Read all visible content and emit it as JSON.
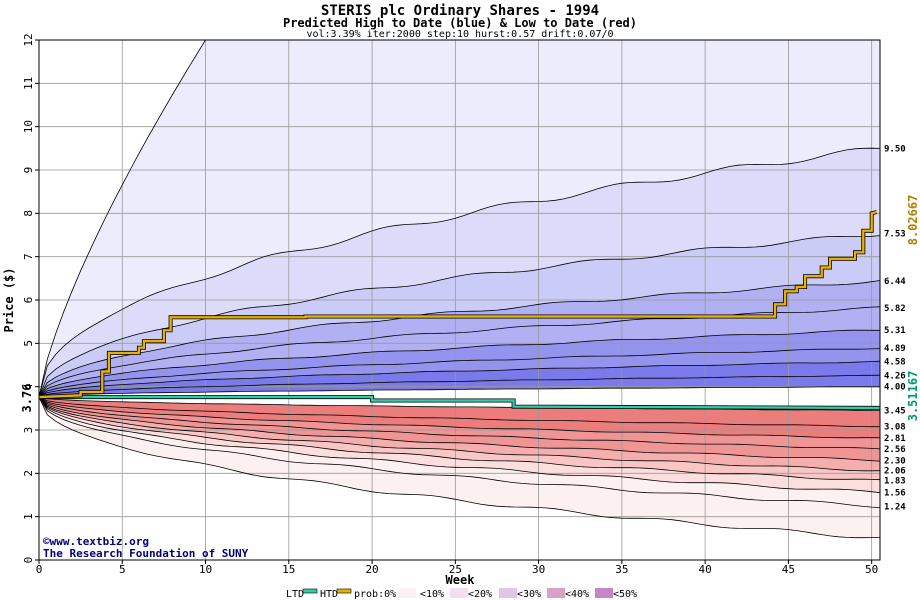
{
  "chart_data": {
    "type": "area",
    "title": "STERIS plc Ordinary Shares - 1994",
    "subtitle": "Predicted High to Date (blue) &  Low to Date (red)",
    "params": "vol:3.39% iter:2000 step:10 hurst:0.57 drift:0.07/0",
    "xlabel": "Week",
    "ylabel": "Price ($)",
    "xlim": [
      0,
      50.5
    ],
    "ylim": [
      0,
      12
    ],
    "xticks": [
      0,
      5,
      10,
      15,
      20,
      25,
      30,
      35,
      40,
      45,
      50
    ],
    "yticks": [
      0,
      1,
      2,
      3,
      4,
      5,
      6,
      7,
      8,
      9,
      10,
      11,
      12
    ],
    "grid": true,
    "start_price": 3.76,
    "start_label": "3.76",
    "high_final_label": "8.02667",
    "low_final_label": "3.51167",
    "colors": {
      "high_band_outer": "#ececfc",
      "high_band_10": "#dcdcfa",
      "high_band_20": "#cbcbf7",
      "high_band_30": "#b0b0f2",
      "high_band_40": "#9494ee",
      "high_band_50": "#7a7aea",
      "low_band_outer": "#fdf0f0",
      "low_band_10": "#fcdede",
      "low_band_20": "#f9c6c6",
      "low_band_30": "#f5aeae",
      "low_band_40": "#f09595",
      "low_band_50": "#ec7d7d",
      "ltd_line": "#33ccaa",
      "htd_line": "#e8b000",
      "curve": "#000000",
      "grid": "#999999",
      "credit": "#00007a"
    },
    "upper_curves": [
      {
        "label": "",
        "final": 12.0
      },
      {
        "label": "9.50",
        "final": 9.5
      },
      {
        "label": "7.53",
        "final": 7.53
      },
      {
        "label": "6.44",
        "final": 6.44
      },
      {
        "label": "5.82",
        "final": 5.82
      },
      {
        "label": "5.31",
        "final": 5.31
      },
      {
        "label": "4.89",
        "final": 4.89
      },
      {
        "label": "4.58",
        "final": 4.58
      },
      {
        "label": "4.26",
        "final": 4.26
      },
      {
        "label": "4.00",
        "final": 4.0
      }
    ],
    "lower_curves": [
      {
        "label": "3.45",
        "final": 3.45
      },
      {
        "label": "3.08",
        "final": 3.08
      },
      {
        "label": "2.81",
        "final": 2.81
      },
      {
        "label": "2.56",
        "final": 2.56
      },
      {
        "label": "2.30",
        "final": 2.3
      },
      {
        "label": "2.06",
        "final": 2.06
      },
      {
        "label": "1.83",
        "final": 1.83
      },
      {
        "label": "1.56",
        "final": 1.56
      },
      {
        "label": "1.24",
        "final": 1.24
      },
      {
        "label": "",
        "final": 0.5
      }
    ],
    "htd_series": {
      "name": "HTD",
      "points": [
        [
          0,
          3.76
        ],
        [
          2.5,
          3.8
        ],
        [
          2.5,
          3.88
        ],
        [
          3.8,
          3.88
        ],
        [
          3.8,
          4.35
        ],
        [
          4.2,
          4.35
        ],
        [
          4.2,
          4.78
        ],
        [
          6,
          4.78
        ],
        [
          6,
          4.9
        ],
        [
          6.3,
          4.9
        ],
        [
          6.3,
          5.05
        ],
        [
          7.5,
          5.05
        ],
        [
          7.5,
          5.3
        ],
        [
          7.9,
          5.3
        ],
        [
          7.9,
          5.6
        ],
        [
          16,
          5.6
        ],
        [
          16,
          5.62
        ],
        [
          44.2,
          5.62
        ],
        [
          44.2,
          5.9
        ],
        [
          44.8,
          5.9
        ],
        [
          44.8,
          6.2
        ],
        [
          45.5,
          6.2
        ],
        [
          45.5,
          6.3
        ],
        [
          46,
          6.3
        ],
        [
          46,
          6.55
        ],
        [
          47,
          6.55
        ],
        [
          47,
          6.75
        ],
        [
          47.5,
          6.75
        ],
        [
          47.5,
          6.95
        ],
        [
          49,
          6.95
        ],
        [
          49,
          7.1
        ],
        [
          49.5,
          7.1
        ],
        [
          49.5,
          7.6
        ],
        [
          50,
          7.6
        ],
        [
          50,
          8.0
        ],
        [
          50.3,
          8.03
        ]
      ]
    },
    "ltd_series": {
      "name": "LTD",
      "points": [
        [
          0,
          3.76
        ],
        [
          20,
          3.76
        ],
        [
          20,
          3.68
        ],
        [
          28.5,
          3.68
        ],
        [
          28.5,
          3.54
        ],
        [
          50.5,
          3.51
        ]
      ]
    },
    "legend": {
      "ltd": "LTD",
      "htd": "HTD",
      "prob": "prob:0%",
      "b10": "<10%",
      "b20": "<20%",
      "b30": "<30%",
      "b40": "<40%",
      "b50": "<50%"
    },
    "credit_line1": "©www.textbiz.org",
    "credit_line2": "The Research Foundation of SUNY"
  }
}
